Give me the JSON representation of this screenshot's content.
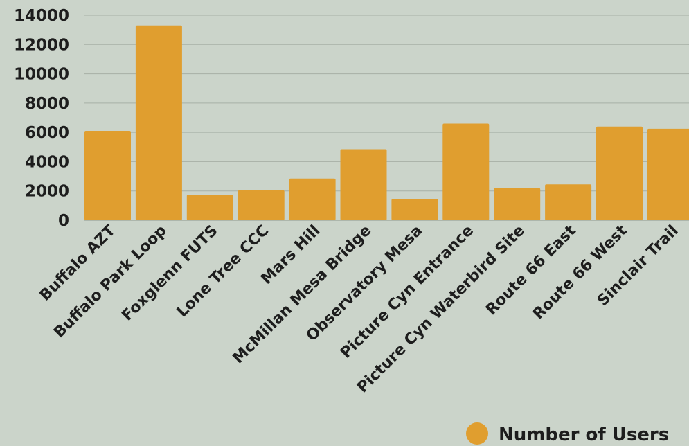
{
  "chart_data": {
    "type": "bar",
    "categories": [
      "Buffalo AZT",
      "Buffalo Park Loop",
      "Foxglenn FUTS",
      "Lone Tree CCC",
      "Mars Hill",
      "McMillan Mesa Bridge",
      "Observatory Mesa",
      "Picture Cyn Entrance",
      "Picture Cyn Waterbird Site",
      "Route 66 East",
      "Route 66 West",
      "Sinclair Trail"
    ],
    "series": [
      {
        "name": "Number of Users",
        "values": [
          6100,
          13300,
          1750,
          2050,
          2850,
          4850,
          1450,
          6600,
          2200,
          2450,
          6400,
          6250
        ],
        "color": "#e09e2f"
      }
    ],
    "yticks": [
      0,
      2000,
      4000,
      6000,
      8000,
      10000,
      12000,
      14000
    ],
    "ylim": [
      0,
      14000
    ],
    "grid": true,
    "legend": "bottom-right",
    "title": "",
    "xlabel": "",
    "ylabel": ""
  }
}
